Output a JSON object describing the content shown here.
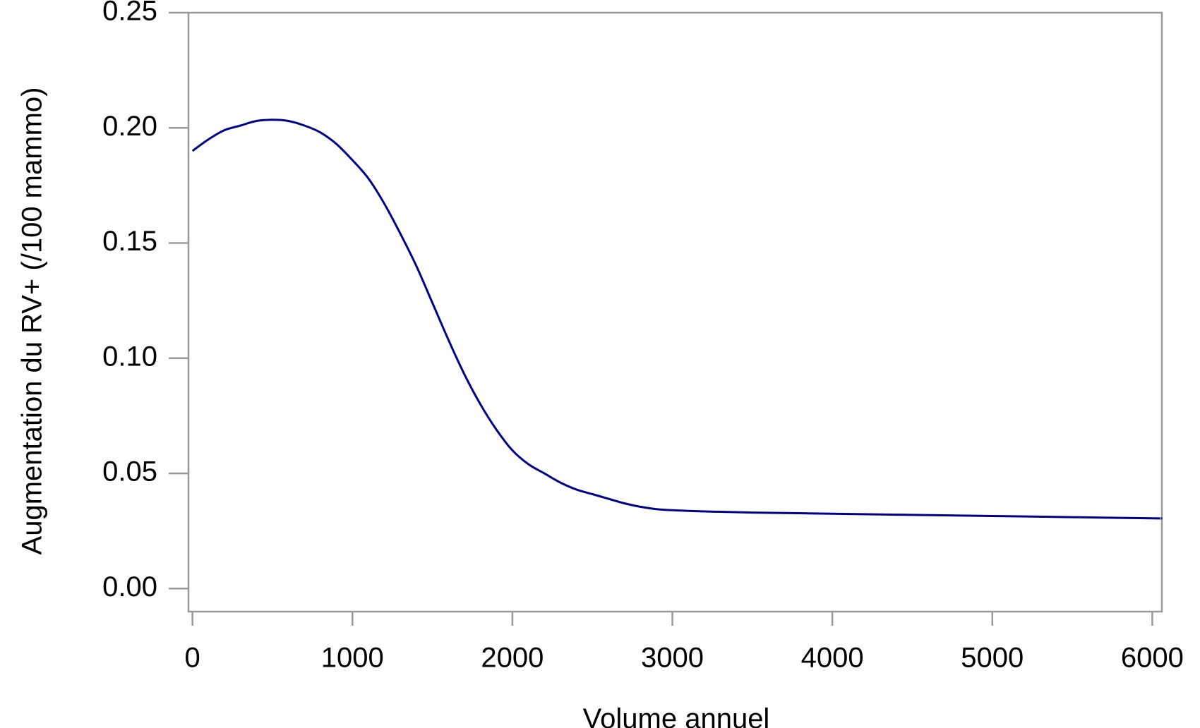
{
  "chart_data": {
    "type": "line",
    "title": "",
    "xlabel": "Volume annuel",
    "ylabel": "Augmentation du RV+ (/100 mammo)",
    "xlim": [
      -25,
      6060
    ],
    "ylim": [
      -0.01,
      0.25
    ],
    "x_ticks": [
      0,
      1000,
      2000,
      3000,
      4000,
      5000,
      6000
    ],
    "x_tick_labels": [
      "0",
      "1000",
      "2000",
      "3000",
      "4000",
      "5000",
      "6000"
    ],
    "y_ticks": [
      0.0,
      0.05,
      0.1,
      0.15,
      0.2,
      0.25
    ],
    "y_tick_labels": [
      "0.00",
      "0.05",
      "0.10",
      "0.15",
      "0.20",
      "0.25"
    ],
    "grid": false,
    "series": [
      {
        "color": "#00008b",
        "x": [
          0,
          100,
          200,
          300,
          400,
          500,
          600,
          700,
          800,
          900,
          1000,
          1100,
          1200,
          1300,
          1400,
          1500,
          1600,
          1700,
          1800,
          1900,
          2000,
          2100,
          2200,
          2300,
          2400,
          2500,
          2600,
          2700,
          2800,
          2900,
          3000,
          3200,
          3500,
          4000,
          4500,
          5000,
          5500,
          6000,
          6050
        ],
        "y": [
          0.19,
          0.195,
          0.199,
          0.201,
          0.203,
          0.2035,
          0.203,
          0.201,
          0.198,
          0.193,
          0.186,
          0.178,
          0.167,
          0.154,
          0.14,
          0.124,
          0.108,
          0.093,
          0.08,
          0.069,
          0.06,
          0.054,
          0.05,
          0.046,
          0.043,
          0.041,
          0.039,
          0.037,
          0.0355,
          0.0345,
          0.034,
          0.0335,
          0.033,
          0.0325,
          0.032,
          0.0315,
          0.031,
          0.0305,
          0.0305
        ]
      }
    ]
  }
}
